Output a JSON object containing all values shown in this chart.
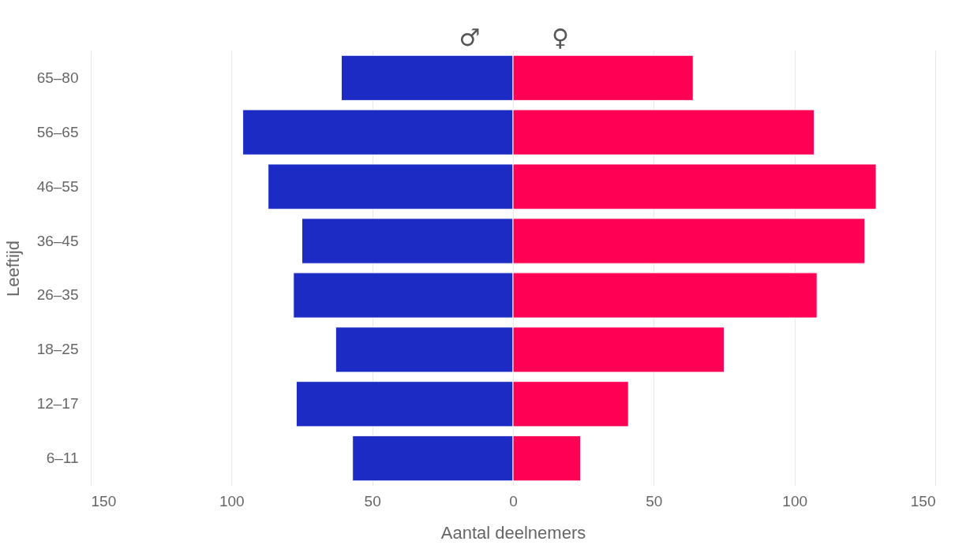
{
  "chart_data": {
    "type": "bar",
    "orientation": "horizontal",
    "xlabel": "Aantal deelnemers",
    "ylabel": "Leeftijd",
    "categories": [
      "65–80",
      "56–65",
      "46–55",
      "36–45",
      "26–35",
      "18–25",
      "12–17",
      "6–11"
    ],
    "series": [
      {
        "name": "♂",
        "color": "#1b2bc4",
        "values": [
          -61,
          -96,
          -87,
          -75,
          -78,
          -63,
          -77,
          -57
        ]
      },
      {
        "name": "♀",
        "color": "#ff0055",
        "values": [
          64,
          107,
          129,
          125,
          108,
          75,
          41,
          24
        ]
      }
    ],
    "xlim": [
      -150,
      150
    ],
    "xticks": [
      {
        "value": -150,
        "label": "150"
      },
      {
        "value": -100,
        "label": "100"
      },
      {
        "value": -50,
        "label": "50"
      },
      0,
      50,
      100,
      150
    ],
    "grid": "x",
    "legend": "top",
    "stacked": true
  }
}
